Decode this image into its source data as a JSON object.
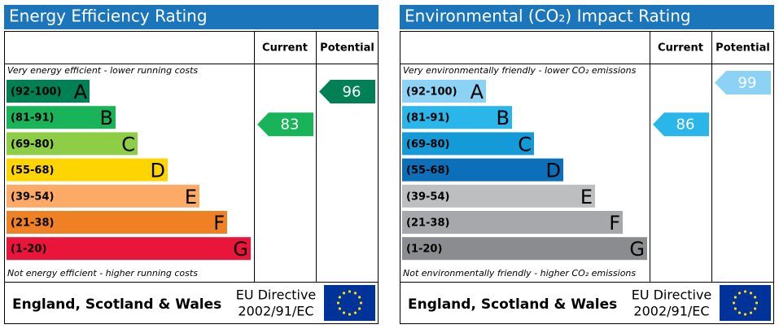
{
  "chart_data": [
    {
      "type": "rating",
      "title": "Energy Efficiency Rating",
      "columns": [
        "Current",
        "Potential"
      ],
      "top_note": "Very energy efficient - lower running costs",
      "bottom_note": "Not energy efficient - higher running costs",
      "bands": [
        {
          "range": "(92-100)",
          "letter": "A",
          "min": 92,
          "color": "#008054"
        },
        {
          "range": "(81-91)",
          "letter": "B",
          "min": 81,
          "color": "#19b459"
        },
        {
          "range": "(69-80)",
          "letter": "C",
          "min": 69,
          "color": "#8dce46"
        },
        {
          "range": "(55-68)",
          "letter": "D",
          "min": 55,
          "color": "#ffd500"
        },
        {
          "range": "(39-54)",
          "letter": "E",
          "min": 39,
          "color": "#fcaa65"
        },
        {
          "range": "(21-38)",
          "letter": "F",
          "min": 21,
          "color": "#ef8023"
        },
        {
          "range": "(1-20)",
          "letter": "G",
          "min": 1,
          "color": "#e9153b"
        }
      ],
      "values": [
        83,
        96
      ],
      "footer": "England, Scotland & Wales",
      "directive": [
        "EU Directive",
        "2002/91/EC"
      ]
    },
    {
      "type": "rating",
      "title": "Environmental (CO₂) Impact Rating",
      "columns": [
        "Current",
        "Potential"
      ],
      "top_note": "Very environmentally friendly - lower CO₂ emissions",
      "bottom_note": "Not environmentally friendly - higher CO₂ emissions",
      "bands": [
        {
          "range": "(92-100)",
          "letter": "A",
          "min": 92,
          "color": "#8cd2f4"
        },
        {
          "range": "(81-91)",
          "letter": "B",
          "min": 81,
          "color": "#2bb6ea"
        },
        {
          "range": "(69-80)",
          "letter": "C",
          "min": 69,
          "color": "#139ad7"
        },
        {
          "range": "(55-68)",
          "letter": "D",
          "min": 55,
          "color": "#0b70b9"
        },
        {
          "range": "(39-54)",
          "letter": "E",
          "min": 39,
          "color": "#bcbec0"
        },
        {
          "range": "(21-38)",
          "letter": "F",
          "min": 21,
          "color": "#a6a8ab"
        },
        {
          "range": "(1-20)",
          "letter": "G",
          "min": 1,
          "color": "#8a8c8f"
        }
      ],
      "values": [
        86,
        99
      ],
      "footer": "England, Scotland & Wales",
      "directive": [
        "EU Directive",
        "2002/91/EC"
      ]
    }
  ]
}
